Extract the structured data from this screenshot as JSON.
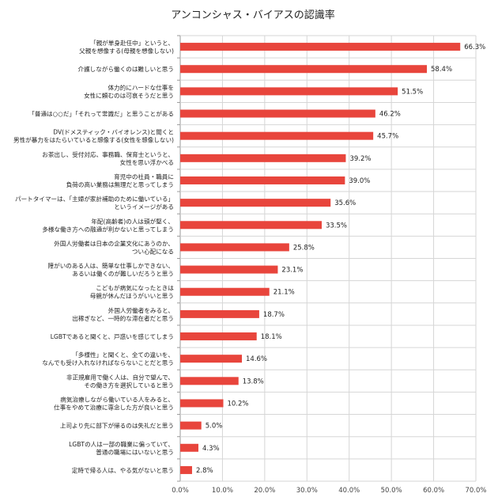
{
  "chart_data": {
    "type": "bar",
    "orientation": "horizontal",
    "title": "アンコンシャス・バイアスの認識率",
    "xlabel": "",
    "ylabel": "",
    "xlim": [
      0,
      70
    ],
    "ticks": [
      "0.0%",
      "10.0%",
      "20.0%",
      "30.0%",
      "40.0%",
      "50.0%",
      "60.0%",
      "70.0%"
    ],
    "bar_color": "#e8453c",
    "grid": true,
    "categories": [
      [
        "「親が単身赴任中」というと、",
        "父親を想像する(母親を想像しない)"
      ],
      [
        "介護しながら働くのは難しいと思う"
      ],
      [
        "体力的にハードな仕事を",
        "女性に頼むのは可哀そうだと思う"
      ],
      [
        "「普通は○○だ」「それって常識だ」と思うことがある"
      ],
      [
        "DV(ドメスティック・バイオレンス)と聞くと",
        "男性が暴力をはたらいていると想像する(女性を想像しない)"
      ],
      [
        "お茶出し、受付対応、事務職、保育士というと、",
        "女性を思い浮かべる"
      ],
      [
        "育児中の社員・職員に",
        "負荷の高い業務は無理だと思ってしまう"
      ],
      [
        "パートタイマーは、「主婦が家計補助のために働いている」",
        "というイメージがある"
      ],
      [
        "年配(高齢者)の人は頭が堅く、",
        "多様な働き方への融通が利かないと思ってしまう"
      ],
      [
        "外国人労働者は日本の企業文化にあうのか、",
        "つい心配になる"
      ],
      [
        "障がいのある人は、簡単な仕事しかできない、",
        "あるいは働くのが難しいだろうと思う"
      ],
      [
        "こどもが病気になったときは",
        "母親が休んだほうがいいと思う"
      ],
      [
        "外国人労働者をみると、",
        "出稼ぎなど、一時的な滞在者だと思う"
      ],
      [
        "LGBTであると聞くと、戸惑いを感じてしまう"
      ],
      [
        "「多様性」と聞くと、全ての違いを、",
        "なんでも受け入れなければならないことだと思う"
      ],
      [
        "非正規雇用で働く人は、自分で望んで、",
        "その働き方を選択していると思う"
      ],
      [
        "病気治療しながら働いている人をみると、",
        "仕事をやめて治療に専念した方が良いと思う"
      ],
      [
        "上司より先に部下が帰るのは失礼だと思う"
      ],
      [
        "LGBTの人は一部の職業に偏っていて、",
        "普通の職場にはいないと思う"
      ],
      [
        "定時で帰る人は、やる気がないと思う"
      ]
    ],
    "values": [
      66.3,
      58.4,
      51.5,
      46.2,
      45.7,
      39.2,
      39.0,
      35.6,
      33.5,
      25.8,
      23.1,
      21.1,
      18.7,
      18.1,
      14.6,
      13.8,
      10.2,
      5.0,
      4.3,
      2.8
    ],
    "value_labels": [
      "66.3%",
      "58.4%",
      "51.5%",
      "46.2%",
      "45.7%",
      "39.2%",
      "39.0%",
      "35.6%",
      "33.5%",
      "25.8%",
      "23.1%",
      "21.1%",
      "18.7%",
      "18.1%",
      "14.6%",
      "13.8%",
      "10.2%",
      "5.0%",
      "4.3%",
      "2.8%"
    ]
  }
}
